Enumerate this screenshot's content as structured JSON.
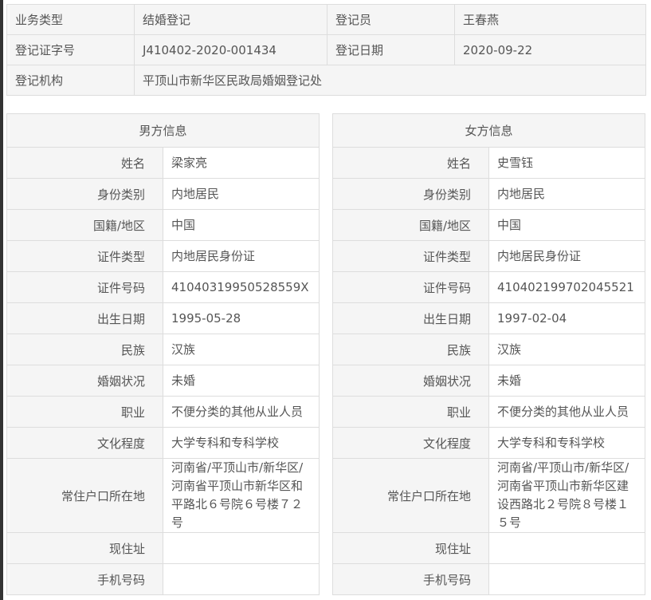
{
  "top": {
    "rows": [
      [
        {
          "label": "业务类型",
          "value": "结婚登记"
        },
        {
          "label": "登记员",
          "value": "王春燕"
        }
      ],
      [
        {
          "label": "登记证字号",
          "value": "J410402-2020-001434"
        },
        {
          "label": "登记日期",
          "value": "2020-09-22"
        }
      ]
    ],
    "org_label": "登记机构",
    "org_value": "平顶山市新华区民政局婚姻登记处"
  },
  "male": {
    "title": "男方信息",
    "fields": [
      {
        "label": "姓名",
        "value": "梁家亮"
      },
      {
        "label": "身份类别",
        "value": "内地居民"
      },
      {
        "label": "国籍/地区",
        "value": "中国"
      },
      {
        "label": "证件类型",
        "value": "内地居民身份证"
      },
      {
        "label": "证件号码",
        "value": "41040319950528559X"
      },
      {
        "label": "出生日期",
        "value": "1995-05-28"
      },
      {
        "label": "民族",
        "value": "汉族"
      },
      {
        "label": "婚姻状况",
        "value": "未婚"
      },
      {
        "label": "职业",
        "value": "不便分类的其他从业人员"
      },
      {
        "label": "文化程度",
        "value": "大学专科和专科学校"
      },
      {
        "label": "常住户口所在地",
        "value": "河南省/平顶山市/新华区/河南省平顶山市新华区和平路北６号院６号楼７２号"
      },
      {
        "label": "现住址",
        "value": ""
      },
      {
        "label": "手机号码",
        "value": ""
      }
    ]
  },
  "female": {
    "title": "女方信息",
    "fields": [
      {
        "label": "姓名",
        "value": "史雪钰"
      },
      {
        "label": "身份类别",
        "value": "内地居民"
      },
      {
        "label": "国籍/地区",
        "value": "中国"
      },
      {
        "label": "证件类型",
        "value": "内地居民身份证"
      },
      {
        "label": "证件号码",
        "value": "410402199702045521"
      },
      {
        "label": "出生日期",
        "value": "1997-02-04"
      },
      {
        "label": "民族",
        "value": "汉族"
      },
      {
        "label": "婚姻状况",
        "value": "未婚"
      },
      {
        "label": "职业",
        "value": "不便分类的其他从业人员"
      },
      {
        "label": "文化程度",
        "value": "大学专科和专科学校"
      },
      {
        "label": "常住户口所在地",
        "value": "河南省/平顶山市/新华区/河南省平顶山市新华区建设西路北２号院８号楼１５号"
      },
      {
        "label": "现住址",
        "value": ""
      },
      {
        "label": "手机号码",
        "value": ""
      }
    ]
  }
}
